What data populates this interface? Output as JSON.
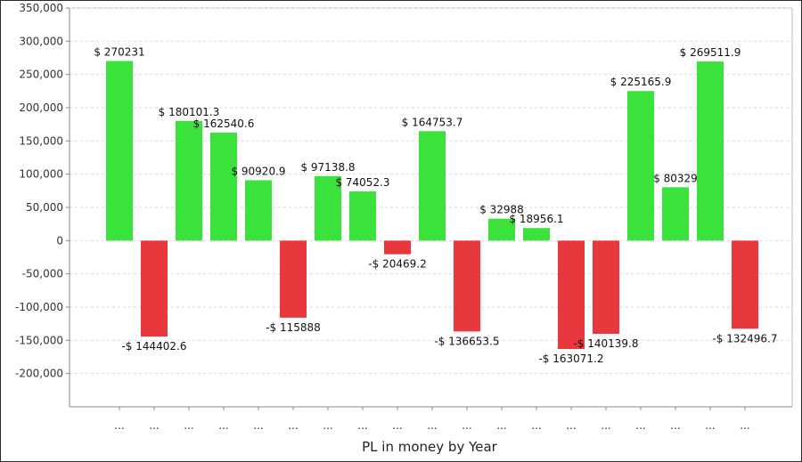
{
  "chart_data": {
    "type": "bar",
    "title": "",
    "xlabel": "PL in money by Year",
    "ylabel": "",
    "ylim": [
      -250000,
      350000
    ],
    "yticks": [
      -200000,
      -150000,
      -100000,
      -50000,
      0,
      50000,
      100000,
      150000,
      200000,
      250000,
      300000,
      350000
    ],
    "ytick_labels": [
      "-200,000",
      "-150,000",
      "-100,000",
      "-50,000",
      "0",
      "50,000",
      "100,000",
      "150,000",
      "200,000",
      "250,000",
      "300,000",
      "350,000"
    ],
    "categories": [
      "...",
      "...",
      "...",
      "...",
      "...",
      "...",
      "...",
      "...",
      "...",
      "...",
      "...",
      "...",
      "...",
      "...",
      "...",
      "...",
      "...",
      "...",
      "..."
    ],
    "values": [
      270231,
      -144402.6,
      180101.3,
      162540.6,
      90920.9,
      -115888,
      97138.8,
      74052.3,
      -20469.2,
      164753.7,
      -136653.5,
      32988,
      18956.1,
      -163071.2,
      -140139.8,
      225165.9,
      80329,
      269511.9,
      -132496.7
    ],
    "data_labels": [
      "$ 270231",
      "-$ 144402.6",
      "$ 180101.3",
      "$ 162540.6",
      "$ 90920.9",
      "-$ 115888",
      "$ 97138.8",
      "$ 74052.3",
      "-$ 20469.2",
      "$ 164753.7",
      "-$ 136653.5",
      "$ 32988",
      "$ 18956.1",
      "-$ 163071.2",
      "-$ 140139.8",
      "$ 225165.9",
      "$ 80329",
      "$ 269511.9",
      "-$ 132496.7"
    ],
    "grid": true,
    "legend": false,
    "colors": {
      "positive": "#3be23b",
      "negative": "#e8383d",
      "grid": "#d8d8d8",
      "axis": "#888888"
    }
  }
}
